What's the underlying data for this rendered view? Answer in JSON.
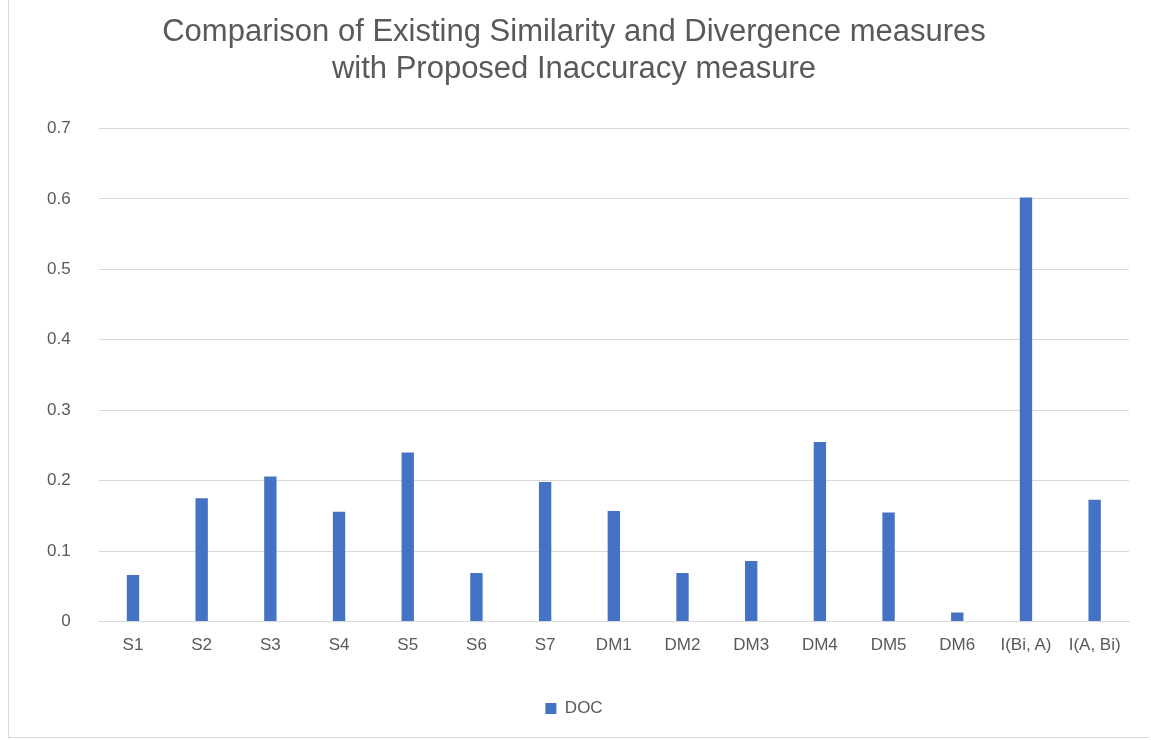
{
  "chart_data": {
    "type": "bar",
    "title": "Comparison of Existing Similarity and Divergence measures\nwith Proposed Inaccuracy measure",
    "categories": [
      "S1",
      "S2",
      "S3",
      "S4",
      "S5",
      "S6",
      "S7",
      "DM1",
      "DM2",
      "DM3",
      "DM4",
      "DM5",
      "DM6",
      "I(Bi, A)",
      "I(A, Bi)"
    ],
    "series": [
      {
        "name": "DOC",
        "color": "#4472c4",
        "values": [
          0.066,
          0.175,
          0.206,
          0.156,
          0.24,
          0.069,
          0.198,
          0.157,
          0.069,
          0.086,
          0.255,
          0.155,
          0.013,
          0.602,
          0.173
        ]
      }
    ],
    "ylim": [
      0,
      0.7
    ],
    "yticks": [
      0,
      0.1,
      0.2,
      0.3,
      0.4,
      0.5,
      0.6,
      0.7
    ],
    "grid": "y",
    "legend": "bottom"
  }
}
